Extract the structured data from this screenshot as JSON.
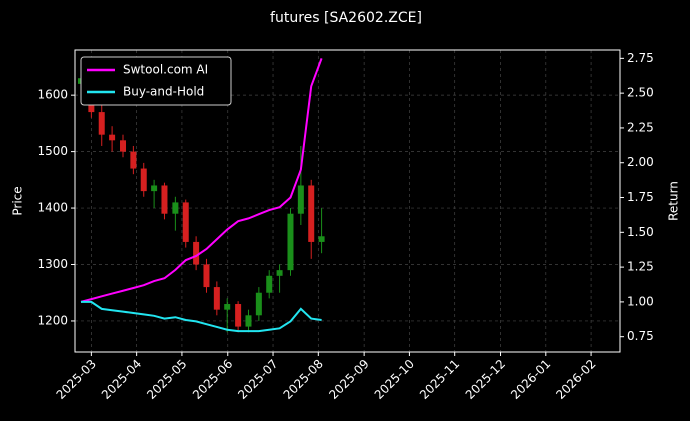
{
  "chart_data": {
    "type": "candlestick",
    "title": "futures [SA2602.ZCE]",
    "ylabel": "Price",
    "y2label": "Return",
    "x": [
      2025.148,
      2025.167,
      2025.186,
      2025.205,
      2025.225,
      2025.244,
      2025.263,
      2025.282,
      2025.301,
      2025.321,
      2025.34,
      2025.359,
      2025.378,
      2025.397,
      2025.416,
      2025.436,
      2025.455,
      2025.474,
      2025.493,
      2025.512,
      2025.532,
      2025.551,
      2025.57,
      2025.589
    ],
    "open": [
      1620,
      1630,
      1570,
      1530,
      1520,
      1500,
      1470,
      1430,
      1440,
      1390,
      1410,
      1340,
      1300,
      1260,
      1220,
      1230,
      1190,
      1210,
      1250,
      1280,
      1290,
      1390,
      1440,
      1340
    ],
    "high": [
      1650,
      1640,
      1590,
      1545,
      1530,
      1510,
      1480,
      1450,
      1445,
      1420,
      1415,
      1350,
      1310,
      1270,
      1240,
      1235,
      1220,
      1260,
      1290,
      1300,
      1400,
      1510,
      1450,
      1400
    ],
    "low": [
      1600,
      1560,
      1510,
      1500,
      1490,
      1460,
      1420,
      1400,
      1380,
      1360,
      1330,
      1290,
      1250,
      1210,
      1180,
      1180,
      1180,
      1200,
      1240,
      1250,
      1280,
      1370,
      1310,
      1320
    ],
    "close": [
      1630,
      1570,
      1530,
      1520,
      1500,
      1470,
      1430,
      1440,
      1390,
      1410,
      1340,
      1300,
      1260,
      1220,
      1230,
      1190,
      1210,
      1250,
      1280,
      1290,
      1390,
      1440,
      1340,
      1350
    ],
    "up_color": "#1a8f1a",
    "down_color": "#d62020",
    "series": [
      {
        "name": "Swtool.com AI",
        "color": "#ff00ff",
        "axis": "y2",
        "values": [
          1.0,
          1.02,
          1.04,
          1.06,
          1.08,
          1.1,
          1.12,
          1.15,
          1.17,
          1.23,
          1.3,
          1.33,
          1.38,
          1.45,
          1.52,
          1.58,
          1.6,
          1.63,
          1.66,
          1.68,
          1.75,
          1.95,
          2.55,
          2.75
        ]
      },
      {
        "name": "Buy-and-Hold",
        "color": "#22e5f0",
        "axis": "y2",
        "values": [
          1.0,
          1.0,
          0.95,
          0.94,
          0.93,
          0.92,
          0.91,
          0.9,
          0.88,
          0.89,
          0.87,
          0.86,
          0.84,
          0.82,
          0.8,
          0.79,
          0.79,
          0.79,
          0.8,
          0.81,
          0.86,
          0.95,
          0.88,
          0.87
        ]
      }
    ],
    "xlim": [
      2025.137,
      2026.136
    ],
    "xticks": [
      {
        "value": 2025.167,
        "label": "2025-03"
      },
      {
        "value": 2025.25,
        "label": "2025-04"
      },
      {
        "value": 2025.333,
        "label": "2025-05"
      },
      {
        "value": 2025.417,
        "label": "2025-06"
      },
      {
        "value": 2025.5,
        "label": "2025-07"
      },
      {
        "value": 2025.583,
        "label": "2025-08"
      },
      {
        "value": 2025.667,
        "label": "2025-09"
      },
      {
        "value": 2025.75,
        "label": "2025-10"
      },
      {
        "value": 2025.833,
        "label": "2025-11"
      },
      {
        "value": 2025.917,
        "label": "2025-12"
      },
      {
        "value": 2026.0,
        "label": "2026-01"
      },
      {
        "value": 2026.083,
        "label": "2026-02"
      }
    ],
    "ylim": [
      1145,
      1680
    ],
    "yticks": [
      1200,
      1300,
      1400,
      1500,
      1600
    ],
    "y2lim": [
      0.64,
      2.81
    ],
    "y2ticks": [
      0.75,
      {
        "value": 1.0,
        "label": "1.00"
      },
      1.25,
      {
        "value": 1.5,
        "label": "1.50"
      },
      1.75,
      {
        "value": 2.0,
        "label": "2.00"
      },
      2.25,
      {
        "value": 2.5,
        "label": "2.50"
      },
      2.75
    ],
    "grid": true,
    "legend": "upper left"
  }
}
